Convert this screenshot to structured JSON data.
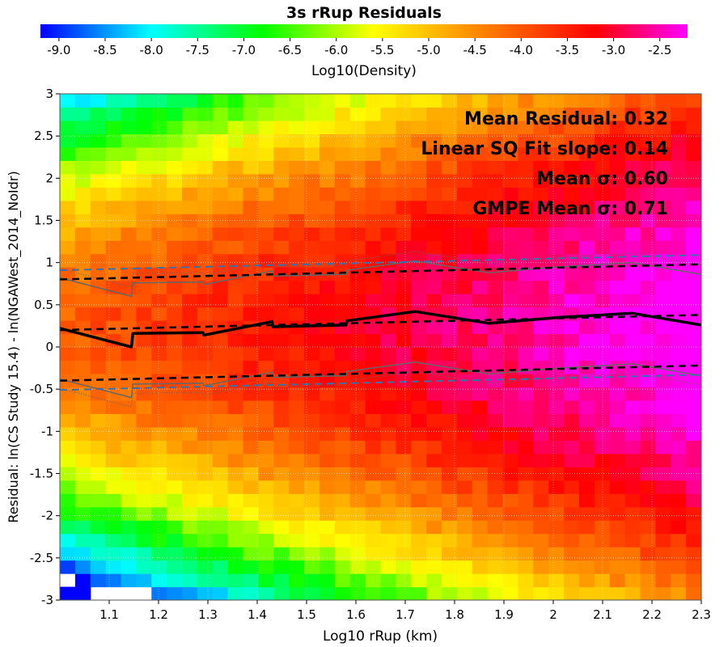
{
  "chart_data": {
    "type": "heatmap",
    "title": "3s rRup Residuals",
    "xlabel": "Log10 rRup (km)",
    "ylabel": "Residual: ln(CS Study 15.4) - ln(NGAWest_2014_NoIdr)",
    "xlim": [
      1.0,
      2.3
    ],
    "ylim": [
      -3,
      3
    ],
    "x_ticks": [
      "1.1",
      "1.2",
      "1.3",
      "1.4",
      "1.5",
      "1.6",
      "1.7",
      "1.8",
      "1.9",
      "2",
      "2.1",
      "2.2",
      "2.3"
    ],
    "y_ticks": [
      "3",
      "2.5",
      "2",
      "1.5",
      "1",
      "0.5",
      "0",
      "-0.5",
      "-1",
      "-1.5",
      "-2",
      "-2.5",
      "-3"
    ],
    "grid": true,
    "colorbar": {
      "label": "Log10(Density)",
      "range": [
        -9.2,
        -2.2
      ],
      "ticks": [
        "-9.0",
        "-8.5",
        "-8.0",
        "-7.5",
        "-7.0",
        "-6.5",
        "-6.0",
        "-5.5",
        "-5.0",
        "-4.5",
        "-4.0",
        "-3.5",
        "-3.0",
        "-2.5"
      ],
      "stops": [
        {
          "v": -9.2,
          "color": "#0000ff"
        },
        {
          "v": -8.0,
          "color": "#00ffff"
        },
        {
          "v": -6.8,
          "color": "#00ff00"
        },
        {
          "v": -5.6,
          "color": "#ffff00"
        },
        {
          "v": -4.4,
          "color": "#ff8000"
        },
        {
          "v": -3.2,
          "color": "#ff0000"
        },
        {
          "v": -2.2,
          "color": "#ff00ff"
        }
      ]
    },
    "annotations": [
      "Mean Residual: 0.32",
      "Linear SQ Fit slope: 0.14",
      "Mean σ: 0.60",
      "GMPE Mean σ: 0.71"
    ],
    "series": [
      {
        "kind": "mean",
        "style": "solid-black",
        "x": [
          1.0,
          1.145,
          1.148,
          1.29,
          1.292,
          1.43,
          1.432,
          1.58,
          1.582,
          1.72,
          1.87,
          2.01,
          2.16,
          2.3
        ],
        "y": [
          0.22,
          0.0,
          0.16,
          0.17,
          0.14,
          0.3,
          0.24,
          0.26,
          0.31,
          0.42,
          0.28,
          0.35,
          0.4,
          0.26
        ]
      },
      {
        "kind": "mean-plus-sigma",
        "style": "thin-gray",
        "x": [
          1.0,
          1.145,
          1.148,
          1.29,
          1.292,
          1.43,
          1.432,
          1.58,
          1.582,
          1.72,
          1.87,
          2.01,
          2.16,
          2.3
        ],
        "y": [
          0.82,
          0.6,
          0.76,
          0.77,
          0.74,
          0.9,
          0.84,
          0.86,
          0.91,
          1.02,
          0.88,
          0.95,
          1.0,
          0.86
        ]
      },
      {
        "kind": "mean-minus-sigma",
        "style": "thin-gray",
        "x": [
          1.0,
          1.145,
          1.148,
          1.29,
          1.292,
          1.43,
          1.432,
          1.58,
          1.582,
          1.72,
          1.87,
          2.01,
          2.16,
          2.3
        ],
        "y": [
          -0.38,
          -0.6,
          -0.44,
          -0.43,
          -0.46,
          -0.3,
          -0.36,
          -0.34,
          -0.29,
          -0.18,
          -0.32,
          -0.25,
          -0.2,
          -0.34
        ]
      },
      {
        "kind": "gmpe-mean-plus-sigma",
        "style": "dotted-gray",
        "x": [
          1.0,
          1.145,
          1.148,
          1.29,
          1.292,
          1.43,
          1.432,
          1.58,
          1.582,
          1.72,
          1.87,
          2.01,
          2.16,
          2.3
        ],
        "y": [
          0.93,
          0.71,
          0.87,
          0.88,
          0.85,
          1.01,
          0.95,
          0.97,
          1.02,
          1.13,
          0.99,
          1.06,
          1.11,
          0.97
        ]
      },
      {
        "kind": "gmpe-mean-minus-sigma",
        "style": "dotted-gray",
        "x": [
          1.0,
          1.145,
          1.148,
          1.29,
          1.292,
          1.43,
          1.432,
          1.58,
          1.582,
          1.72,
          1.87,
          2.01,
          2.16,
          2.3
        ],
        "y": [
          -0.49,
          -0.71,
          -0.55,
          -0.54,
          -0.57,
          -0.41,
          -0.47,
          -0.45,
          -0.4,
          -0.29,
          -0.43,
          -0.36,
          -0.31,
          -0.45
        ]
      },
      {
        "kind": "linear-fit",
        "style": "dashed-black",
        "x": [
          1.0,
          2.3
        ],
        "y": [
          0.2,
          0.38
        ]
      },
      {
        "kind": "linear-fit-plus-sigma",
        "style": "dashed-black",
        "x": [
          1.0,
          2.3
        ],
        "y": [
          0.8,
          0.98
        ]
      },
      {
        "kind": "linear-fit-minus-sigma",
        "style": "dashed-black",
        "x": [
          1.0,
          2.3
        ],
        "y": [
          -0.4,
          -0.22
        ]
      },
      {
        "kind": "gmpe-fit-plus-sigma",
        "style": "dashed-steelblue",
        "x": [
          1.0,
          2.3
        ],
        "y": [
          0.91,
          1.09
        ]
      },
      {
        "kind": "gmpe-fit-minus-sigma",
        "style": "dashed-steelblue",
        "x": [
          1.0,
          2.3
        ],
        "y": [
          -0.51,
          -0.33
        ]
      }
    ]
  }
}
